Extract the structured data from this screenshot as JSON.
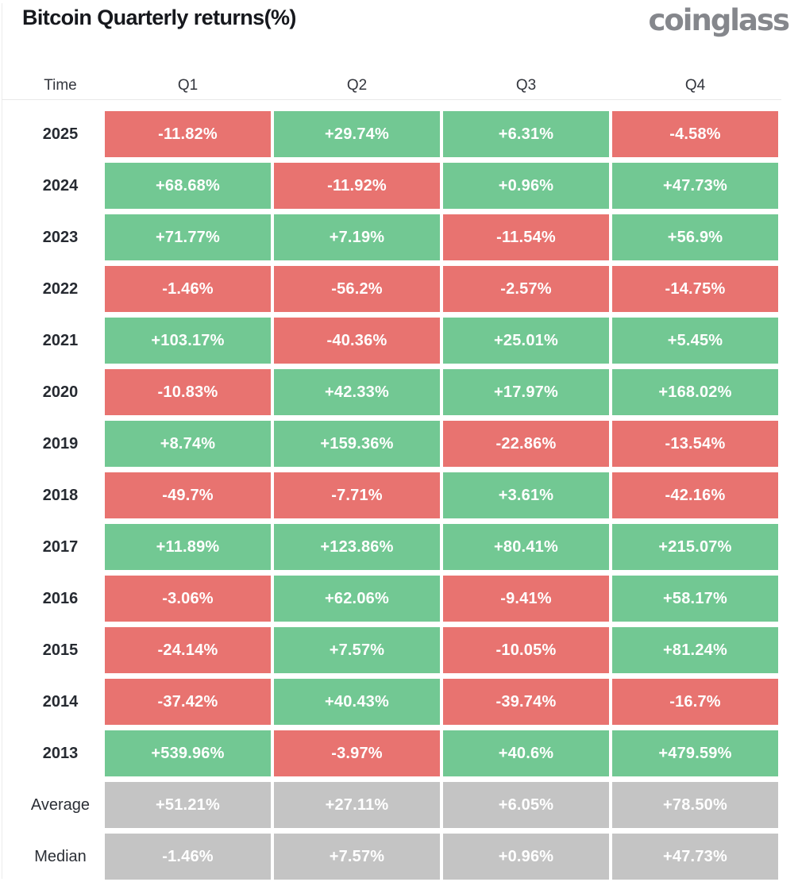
{
  "header": {
    "title": "Bitcoin Quarterly returns(%)",
    "logo_text": "coinglass"
  },
  "colors": {
    "positive": "#72c893",
    "negative": "#e87370",
    "neutral": "#c4c4c4",
    "title_text": "#16181d",
    "logo_text": "#85878c",
    "label_text": "#262a31",
    "cell_text": "#ffffff",
    "divider": "#e9e9e9"
  },
  "table": {
    "columns": [
      "Time",
      "Q1",
      "Q2",
      "Q3",
      "Q4"
    ],
    "rows": [
      {
        "label": "2025",
        "aggregate": false,
        "values": [
          "-11.82%",
          "+29.74%",
          "+6.31%",
          "-4.58%"
        ]
      },
      {
        "label": "2024",
        "aggregate": false,
        "values": [
          "+68.68%",
          "-11.92%",
          "+0.96%",
          "+47.73%"
        ]
      },
      {
        "label": "2023",
        "aggregate": false,
        "values": [
          "+71.77%",
          "+7.19%",
          "-11.54%",
          "+56.9%"
        ]
      },
      {
        "label": "2022",
        "aggregate": false,
        "values": [
          "-1.46%",
          "-56.2%",
          "-2.57%",
          "-14.75%"
        ]
      },
      {
        "label": "2021",
        "aggregate": false,
        "values": [
          "+103.17%",
          "-40.36%",
          "+25.01%",
          "+5.45%"
        ]
      },
      {
        "label": "2020",
        "aggregate": false,
        "values": [
          "-10.83%",
          "+42.33%",
          "+17.97%",
          "+168.02%"
        ]
      },
      {
        "label": "2019",
        "aggregate": false,
        "values": [
          "+8.74%",
          "+159.36%",
          "-22.86%",
          "-13.54%"
        ]
      },
      {
        "label": "2018",
        "aggregate": false,
        "values": [
          "-49.7%",
          "-7.71%",
          "+3.61%",
          "-42.16%"
        ]
      },
      {
        "label": "2017",
        "aggregate": false,
        "values": [
          "+11.89%",
          "+123.86%",
          "+80.41%",
          "+215.07%"
        ]
      },
      {
        "label": "2016",
        "aggregate": false,
        "values": [
          "-3.06%",
          "+62.06%",
          "-9.41%",
          "+58.17%"
        ]
      },
      {
        "label": "2015",
        "aggregate": false,
        "values": [
          "-24.14%",
          "+7.57%",
          "-10.05%",
          "+81.24%"
        ]
      },
      {
        "label": "2014",
        "aggregate": false,
        "values": [
          "-37.42%",
          "+40.43%",
          "-39.74%",
          "-16.7%"
        ]
      },
      {
        "label": "2013",
        "aggregate": false,
        "values": [
          "+539.96%",
          "-3.97%",
          "+40.6%",
          "+479.59%"
        ]
      },
      {
        "label": "Average",
        "aggregate": true,
        "values": [
          "+51.21%",
          "+27.11%",
          "+6.05%",
          "+78.50%"
        ]
      },
      {
        "label": "Median",
        "aggregate": true,
        "values": [
          "-1.46%",
          "+7.57%",
          "+0.96%",
          "+47.73%"
        ]
      }
    ]
  },
  "chart_data": {
    "type": "heatmap",
    "title": "Bitcoin Quarterly returns(%)",
    "columns": [
      "Q1",
      "Q2",
      "Q3",
      "Q4"
    ],
    "rows": [
      "2025",
      "2024",
      "2023",
      "2022",
      "2021",
      "2020",
      "2019",
      "2018",
      "2017",
      "2016",
      "2015",
      "2014",
      "2013",
      "Average",
      "Median"
    ],
    "values": [
      [
        -11.82,
        29.74,
        6.31,
        -4.58
      ],
      [
        68.68,
        -11.92,
        0.96,
        47.73
      ],
      [
        71.77,
        7.19,
        -11.54,
        56.9
      ],
      [
        -1.46,
        -56.2,
        -2.57,
        -14.75
      ],
      [
        103.17,
        -40.36,
        25.01,
        5.45
      ],
      [
        -10.83,
        42.33,
        17.97,
        168.02
      ],
      [
        8.74,
        159.36,
        -22.86,
        -13.54
      ],
      [
        -49.7,
        -7.71,
        3.61,
        -42.16
      ],
      [
        11.89,
        123.86,
        80.41,
        215.07
      ],
      [
        -3.06,
        62.06,
        -9.41,
        58.17
      ],
      [
        -24.14,
        7.57,
        -10.05,
        81.24
      ],
      [
        -37.42,
        40.43,
        -39.74,
        -16.7
      ],
      [
        539.96,
        -3.97,
        40.6,
        479.59
      ],
      [
        51.21,
        27.11,
        6.05,
        78.5
      ],
      [
        -1.46,
        7.57,
        0.96,
        47.73
      ]
    ],
    "color_rule": "cell green when value positive, red when negative, gray for Average/Median aggregate rows",
    "legend": "none",
    "grid": false
  }
}
